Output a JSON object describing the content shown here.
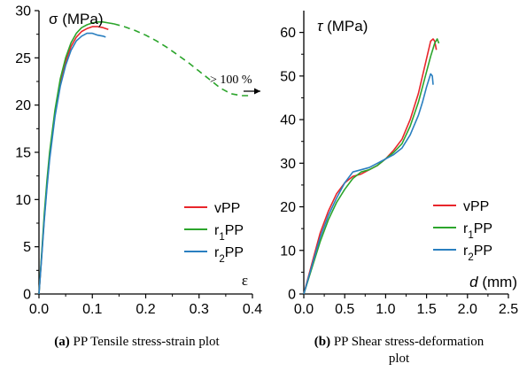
{
  "chart_data": [
    {
      "type": "line",
      "y_label": "σ (MPa)",
      "x_label": "ε",
      "xlim": [
        0,
        0.4
      ],
      "ylim": [
        0,
        30
      ],
      "x_ticks": [
        "0.0",
        "0.1",
        "0.2",
        "0.3",
        "0.4"
      ],
      "y_ticks": [
        "0",
        "5",
        "10",
        "15",
        "20",
        "25",
        "30"
      ],
      "annotation": "> 100 %",
      "legend_position": "center-right",
      "series": [
        {
          "name": "vPP",
          "color": "#e8262b",
          "x": [
            0,
            0.005,
            0.01,
            0.015,
            0.02,
            0.03,
            0.04,
            0.05,
            0.06,
            0.07,
            0.08,
            0.09,
            0.1,
            0.11,
            0.12,
            0.13
          ],
          "y": [
            0,
            4,
            8,
            11.5,
            14.5,
            19,
            22.3,
            24.6,
            26.2,
            27.2,
            27.8,
            28.1,
            28.3,
            28.3,
            28.2,
            28.0
          ]
        },
        {
          "name": "r1PP",
          "color": "#2ca52c",
          "x": [
            0,
            0.005,
            0.01,
            0.015,
            0.02,
            0.03,
            0.04,
            0.05,
            0.06,
            0.07,
            0.08,
            0.09,
            0.1,
            0.11,
            0.12,
            0.13,
            0.14
          ],
          "y": [
            0,
            4.2,
            8.5,
            12,
            15,
            19.5,
            22.8,
            25,
            26.6,
            27.6,
            28.2,
            28.5,
            28.7,
            28.8,
            28.8,
            28.7,
            28.6
          ]
        },
        {
          "name": "r2PP",
          "color": "#2a7fc0",
          "x": [
            0,
            0.005,
            0.01,
            0.015,
            0.02,
            0.03,
            0.04,
            0.05,
            0.06,
            0.07,
            0.08,
            0.09,
            0.1,
            0.11,
            0.12,
            0.125
          ],
          "y": [
            0,
            3.8,
            7.8,
            11.2,
            14.2,
            18.8,
            22,
            24.2,
            25.8,
            26.8,
            27.3,
            27.6,
            27.6,
            27.4,
            27.3,
            27.2
          ]
        },
        {
          "name": "",
          "color": "#2ca52c",
          "dashed": true,
          "x": [
            0.14,
            0.16,
            0.18,
            0.2,
            0.22,
            0.24,
            0.26,
            0.28,
            0.3,
            0.32,
            0.34,
            0.36,
            0.38,
            0.4
          ],
          "y": [
            28.6,
            28.3,
            27.9,
            27.4,
            26.8,
            26.1,
            25.3,
            24.5,
            23.6,
            22.7,
            21.8,
            21.2,
            21.0,
            21.0
          ]
        }
      ]
    },
    {
      "type": "line",
      "y_label": "τ (MPa)",
      "x_label": "d (mm)",
      "xlim": [
        0,
        2.5
      ],
      "ylim": [
        0,
        65
      ],
      "x_ticks": [
        "0.0",
        "0.5",
        "1.0",
        "1.5",
        "2.0",
        "2.5"
      ],
      "y_ticks": [
        "0",
        "10",
        "20",
        "30",
        "40",
        "50",
        "60"
      ],
      "legend_position": "bottom-right",
      "series": [
        {
          "name": "vPP",
          "color": "#e8262b",
          "x": [
            0,
            0.1,
            0.2,
            0.3,
            0.4,
            0.5,
            0.6,
            0.7,
            0.8,
            0.9,
            1.0,
            1.1,
            1.2,
            1.3,
            1.4,
            1.5,
            1.55,
            1.58,
            1.6,
            1.62
          ],
          "y": [
            0,
            7,
            14,
            19,
            23,
            25.5,
            27,
            27.5,
            28.5,
            29.5,
            31,
            33,
            35.5,
            40,
            46,
            54,
            58,
            58.5,
            58,
            56
          ]
        },
        {
          "name": "r1PP",
          "color": "#2ca52c",
          "x": [
            0,
            0.1,
            0.2,
            0.3,
            0.4,
            0.5,
            0.6,
            0.7,
            0.8,
            0.9,
            1.0,
            1.1,
            1.2,
            1.3,
            1.4,
            1.5,
            1.55,
            1.6,
            1.63,
            1.65
          ],
          "y": [
            0,
            6,
            12,
            17,
            21,
            24,
            26.5,
            28,
            28.5,
            29.5,
            31,
            32.5,
            34.5,
            38.5,
            44,
            51,
            54.5,
            57.5,
            58.5,
            57.5
          ]
        },
        {
          "name": "r2PP",
          "color": "#2a7fc0",
          "x": [
            0,
            0.1,
            0.2,
            0.3,
            0.4,
            0.5,
            0.6,
            0.7,
            0.8,
            0.9,
            1.0,
            1.1,
            1.2,
            1.3,
            1.4,
            1.45,
            1.5,
            1.55,
            1.57,
            1.58
          ],
          "y": [
            0,
            6.5,
            13,
            18,
            22,
            25.5,
            28,
            28.5,
            29,
            30,
            31,
            32,
            33.5,
            36.5,
            41,
            44,
            47.5,
            50.5,
            50,
            48
          ]
        }
      ]
    }
  ],
  "captions": {
    "a_label": "(a)",
    "a_text": " PP Tensile stress-strain plot",
    "b_label": "(b)",
    "b_text_line1": " PP Shear stress-deformation",
    "b_text_line2": "plot"
  }
}
